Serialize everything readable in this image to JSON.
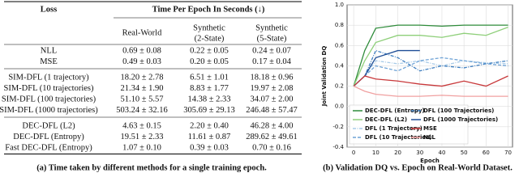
{
  "table": {
    "header": {
      "loss": "Loss",
      "group": "Time Per Epoch In Seconds (↓)",
      "columns": [
        [
          "Real-World"
        ],
        [
          "Synthetic",
          "(2-State)"
        ],
        [
          "Synthetic",
          "(5-State)"
        ]
      ]
    },
    "rows": [
      [
        "NLL",
        "0.69 ± 0.08",
        "0.22 ± 0.05",
        "0.24 ± 0.07"
      ],
      [
        "MSE",
        "0.49 ± 0.03",
        "0.20 ± 0.05",
        "0.17 ± 0.04"
      ],
      [
        "SIM-DFL (1 trajectory)",
        "18.20 ± 2.78",
        "6.51 ± 1.01",
        "18.18 ± 0.96"
      ],
      [
        "SIM-DFL (10 trajectories)",
        "21.34 ± 1.90",
        "8.83 ± 1.77",
        "19.97 ± 2.08"
      ],
      [
        "SIM-DFL (100 trajectories)",
        "51.10 ± 5.57",
        "14.38 ± 2.33",
        "34.07 ± 2.00"
      ],
      [
        "SIM-DFL (1000 trajectories)",
        "503.24 ± 32.16",
        "305.69 ± 29.13",
        "246.48 ± 57.47"
      ],
      [
        "DEC-DFL (L2)",
        "4.63 ± 0.15",
        "2.20 ± 0.40",
        "46.28 ± 4.00"
      ],
      [
        "DEC-DFL (Entropy)",
        "19.51 ± 2.33",
        "11.61 ± 0.87",
        "289.62 ± 49.61"
      ],
      [
        "Fast DEC-DFL (Entropy)",
        "1.07 ± 0.10",
        "0.39 ± 0.03",
        "0.70 ± 0.16"
      ]
    ],
    "caption": "(a) Time taken by different methods for a single training epoch."
  },
  "chart_data": {
    "type": "line",
    "caption": "(b) Validation DQ vs. Epoch on Real-World Dataset.",
    "x_label": "Epoch",
    "y_label": "Joint Validation DQ",
    "x": [
      0,
      5,
      10,
      20,
      30,
      40,
      50,
      60,
      70
    ],
    "xlim": [
      -3,
      72
    ],
    "xticks": [
      0,
      10,
      20,
      30,
      40,
      50,
      60,
      70
    ],
    "ylim": [
      -0.4,
      1.0
    ],
    "yticks": [
      -0.4,
      -0.2,
      {
        "value": 0,
        "label": "0.0"
      },
      0.2,
      0.4,
      0.6,
      0.8,
      {
        "value": 1,
        "label": "1.0"
      }
    ],
    "grid": true,
    "legend": "lower left",
    "series": [
      {
        "name": "DEC-DFL (Entropy)",
        "color": "#2e8b3a",
        "dash": "solid",
        "values": [
          0.2,
          0.55,
          0.77,
          0.8,
          0.8,
          0.79,
          0.8,
          0.8,
          0.8
        ]
      },
      {
        "name": "DEC-DFL (L2)",
        "color": "#8fcf7a",
        "dash": "solid",
        "values": [
          0.2,
          0.45,
          0.63,
          0.7,
          0.7,
          0.68,
          0.72,
          0.7,
          0.78
        ]
      },
      {
        "name": "DFL (1 Trajectory)",
        "color": "#a9cbe8",
        "dash": "dashdot",
        "values": [
          0.2,
          0.3,
          0.45,
          0.42,
          0.45,
          0.4,
          0.45,
          0.43,
          0.42
        ]
      },
      {
        "name": "DFL (10 Trajectories)",
        "color": "#6fa3d6",
        "dash": "dashed",
        "values": [
          0.2,
          0.3,
          0.4,
          0.35,
          0.45,
          0.48,
          0.45,
          0.42,
          0.4
        ]
      },
      {
        "name": "DFL (100 Trajectories)",
        "color": "#3f7fc0",
        "dash": "dashdot",
        "values": [
          0.2,
          0.3,
          0.55,
          0.48,
          0.35,
          0.4,
          0.38,
          0.42,
          0.45
        ]
      },
      {
        "name": "DFL (1000 Trajectories)",
        "color": "#1f4e96",
        "dash": "solid",
        "values": [
          0.2,
          0.3,
          0.48,
          0.55,
          0.55,
          null,
          null,
          null,
          null
        ]
      },
      {
        "name": "MSE",
        "color": "#c8383a",
        "dash": "solid",
        "values": [
          0.2,
          0.3,
          0.27,
          0.25,
          0.22,
          0.2,
          0.25,
          0.2,
          0.3
        ]
      },
      {
        "name": "NLL",
        "color": "#f0a0a0",
        "dash": "solid",
        "values": [
          0.2,
          0.15,
          0.12,
          0.1,
          0.1,
          0.11,
          0.1,
          0.1,
          0.1
        ]
      }
    ]
  }
}
